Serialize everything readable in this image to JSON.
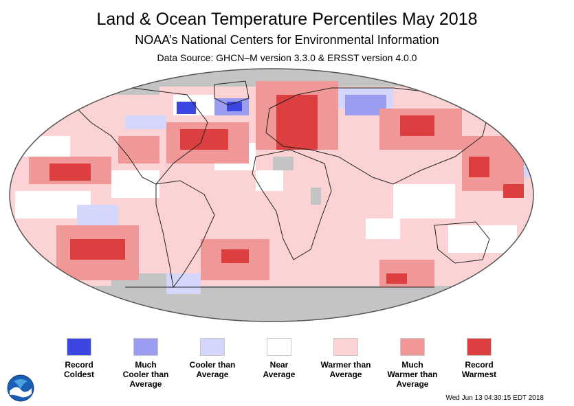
{
  "header": {
    "title": "Land & Ocean Temperature Percentiles May 2018",
    "subtitle": "NOAA’s National Centers for Environmental Information",
    "source": "Data Source: GHCN–M version 3.3.0 & ERSST version 4.0.0"
  },
  "legend": {
    "items": [
      {
        "line1": "Record",
        "line2": "Coldest",
        "line3": "",
        "color": "#3c46e0"
      },
      {
        "line1": "Much",
        "line2": "Cooler than",
        "line3": "Average",
        "color": "#9a9cf0"
      },
      {
        "line1": "Cooler than",
        "line2": "Average",
        "line3": "",
        "color": "#d5d6fb"
      },
      {
        "line1": "Near",
        "line2": "Average",
        "line3": "",
        "color": "#ffffff"
      },
      {
        "line1": "Warmer than",
        "line2": "Average",
        "line3": "",
        "color": "#fbd3d4"
      },
      {
        "line1": "Much",
        "line2": "Warmer than",
        "line3": "Average",
        "color": "#f09797"
      },
      {
        "line1": "Record",
        "line2": "Warmest",
        "line3": "",
        "color": "#dc3f3f"
      }
    ]
  },
  "colors": {
    "no_data": "#c4c4c4",
    "record_coldest": "#3c46e0",
    "much_cooler": "#9a9cf0",
    "cooler": "#d5d6fb",
    "near": "#ffffff",
    "warmer": "#fbd3d4",
    "much_warmer": "#f09797",
    "record_warmest": "#dc3f3f"
  },
  "logo": {
    "text": "NOAA"
  },
  "footer": {
    "timestamp": "Wed Jun 13 04:30:15 EDT 2018"
  }
}
